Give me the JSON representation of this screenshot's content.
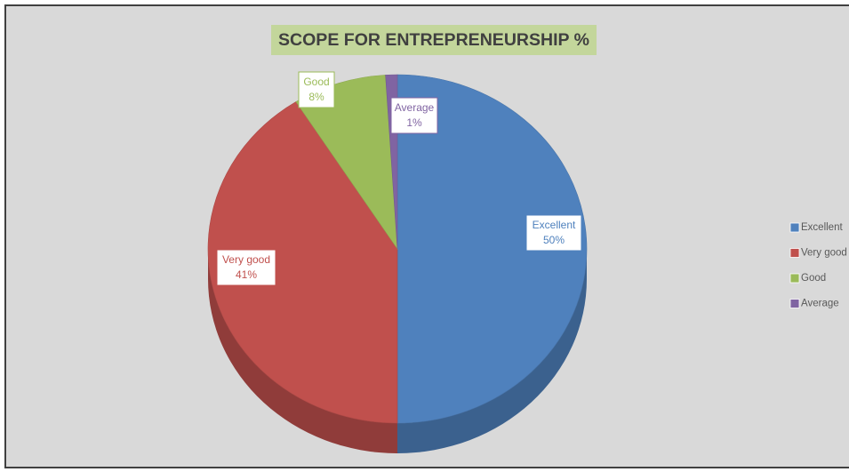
{
  "chart_data": {
    "type": "pie",
    "title": "SCOPE FOR ENTREPRENEURSHIP  %",
    "categories": [
      "Excellent",
      "Very good",
      "Good",
      "Average"
    ],
    "values": [
      50,
      41,
      8,
      1
    ],
    "value_labels": [
      "50%",
      "41%",
      "8%",
      "1%"
    ],
    "colors": [
      "#4f81bd",
      "#c0504d",
      "#9bbb59",
      "#8064a2"
    ],
    "legend": "right"
  }
}
